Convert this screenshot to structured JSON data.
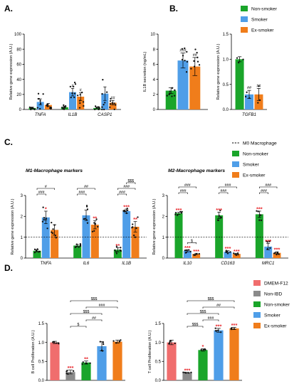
{
  "colors": {
    "green": "#1aa52a",
    "blue": "#4f9ee8",
    "orange": "#f07d1b",
    "dmem": "#f06d6d",
    "grey": "#8a8a8a",
    "star_red": "#e8262b",
    "axis": "#000000"
  },
  "panel_letters": {
    "A": "A.",
    "B": "B.",
    "C": "C.",
    "D": "D."
  },
  "legend_top": [
    "Non-smoker",
    "Smoker",
    "Ex-smoker"
  ],
  "legend_c": [
    "M0 Macrophage",
    "Non-smoker",
    "Smoker",
    "Ex-smoker"
  ],
  "legend_d": [
    "DMEM-F12",
    "Non-IBD",
    "Non-smoker",
    "Smoker",
    "Ex-smoker"
  ],
  "chart_data": [
    {
      "id": "A1",
      "type": "bar",
      "ylabel": "Relative gene expression (A.U.)",
      "ylim": [
        0,
        100
      ],
      "yticks": [
        0,
        20,
        40,
        60,
        80,
        100
      ],
      "categories": [
        "TNFA",
        "IL1B",
        "CASP1"
      ],
      "series": [
        {
          "name": "Non-smoker",
          "values": [
            2,
            3,
            2
          ],
          "errors": [
            1,
            1,
            1
          ]
        },
        {
          "name": "Smoker",
          "values": [
            10,
            23,
            21
          ],
          "errors": [
            4,
            5,
            9
          ]
        },
        {
          "name": "Ex-smoker",
          "values": [
            6,
            17,
            9
          ],
          "errors": [
            2,
            5,
            3
          ]
        }
      ],
      "annotations": [
        {
          "cat": 1,
          "series": 1,
          "text": "#"
        },
        {
          "cat": 1,
          "series": 2,
          "text": "#"
        },
        {
          "cat": 2,
          "series": 2,
          "text": "##"
        }
      ]
    },
    {
      "id": "A2",
      "type": "bar",
      "ylabel": "IL1B secretion (ng/mL)",
      "ylim": [
        0,
        10
      ],
      "yticks": [
        0,
        2,
        4,
        6,
        8,
        10
      ],
      "categories": [
        ""
      ],
      "series": [
        {
          "name": "Non-smoker",
          "values": [
            2.5
          ],
          "errors": [
            0.4
          ]
        },
        {
          "name": "Smoker",
          "values": [
            6.5
          ],
          "errors": [
            1.0
          ]
        },
        {
          "name": "Ex-smoker",
          "values": [
            5.7
          ],
          "errors": [
            1.2
          ]
        }
      ],
      "annotations": [
        {
          "cat": 0,
          "series": 1,
          "text": "###"
        },
        {
          "cat": 0,
          "series": 2,
          "text": "##"
        }
      ]
    },
    {
      "id": "B",
      "type": "bar",
      "ylabel": "Relative gene expression (A.U.)",
      "ylim": [
        0,
        1.5
      ],
      "yticks": [
        0,
        0.5,
        1.0,
        1.5
      ],
      "categories": [
        "TGFB1"
      ],
      "series": [
        {
          "name": "Non-smoker",
          "values": [
            1.0
          ],
          "errors": [
            0.05
          ]
        },
        {
          "name": "Smoker",
          "values": [
            0.3
          ],
          "errors": [
            0.08
          ]
        },
        {
          "name": "Ex-smoker",
          "values": [
            0.3
          ],
          "errors": [
            0.12
          ]
        }
      ],
      "annotations": [
        {
          "cat": 0,
          "series": 1,
          "text": "##"
        },
        {
          "cat": 0,
          "series": 2,
          "text": "##"
        }
      ]
    },
    {
      "id": "C1",
      "type": "bar",
      "title": "M1-Macrophage markers",
      "ylabel": "Relative gene expression (A.U.)",
      "ylim": [
        0,
        3
      ],
      "yticks": [
        0,
        1,
        2,
        3
      ],
      "reference_line": 1,
      "categories": [
        "TNFA",
        "IL6",
        "IL1B"
      ],
      "series": [
        {
          "name": "Non-smoker",
          "values": [
            0.35,
            0.6,
            0.4
          ],
          "errors": [
            0.05,
            0.05,
            0.1
          ]
        },
        {
          "name": "Smoker",
          "values": [
            1.95,
            2.05,
            2.25
          ],
          "errors": [
            0.3,
            0.25,
            0.1
          ]
        },
        {
          "name": "Ex-smoker",
          "values": [
            1.35,
            1.6,
            1.5
          ],
          "errors": [
            0.25,
            0.2,
            0.25
          ]
        }
      ],
      "stars": [
        {
          "cat": 0,
          "series": 1,
          "text": "*"
        },
        {
          "cat": 1,
          "series": 2,
          "text": "**"
        },
        {
          "cat": 2,
          "series": 0,
          "text": "**"
        },
        {
          "cat": 2,
          "series": 1,
          "text": "***"
        },
        {
          "cat": 2,
          "series": 2,
          "text": "**"
        }
      ],
      "brackets": [
        {
          "cat": 0,
          "from": 0,
          "to": 1,
          "level": 0,
          "text": "###"
        },
        {
          "cat": 0,
          "from": 0,
          "to": 2,
          "level": 1,
          "text": "#"
        },
        {
          "cat": 1,
          "from": 0,
          "to": 1,
          "level": 0,
          "text": "###"
        },
        {
          "cat": 1,
          "from": 0,
          "to": 2,
          "level": 1,
          "text": "##"
        },
        {
          "cat": 2,
          "from": 0,
          "to": 1,
          "level": 0,
          "text": "###"
        },
        {
          "cat": 2,
          "from": 0,
          "to": 2,
          "level": 1,
          "text": "###"
        },
        {
          "cat": 2,
          "from": 1,
          "to": 2,
          "level": 2,
          "text": "$$$"
        }
      ]
    },
    {
      "id": "C2",
      "type": "bar",
      "title": "M2-Macrophage markers",
      "ylabel": "Relative gene expression (A.U.)",
      "ylim": [
        0,
        3
      ],
      "yticks": [
        0,
        1,
        2,
        3
      ],
      "reference_line": 1,
      "categories": [
        "IL10",
        "CD163",
        "MRC1"
      ],
      "series": [
        {
          "name": "Non-smoker",
          "values": [
            2.15,
            2.05,
            2.1
          ],
          "errors": [
            0.05,
            0.15,
            0.15
          ]
        },
        {
          "name": "Smoker",
          "values": [
            0.35,
            0.3,
            0.55
          ],
          "errors": [
            0.05,
            0.05,
            0.15
          ]
        },
        {
          "name": "Ex-smoker",
          "values": [
            0.2,
            0.2,
            0.25
          ],
          "errors": [
            0.03,
            0.03,
            0.05
          ]
        }
      ],
      "stars": [
        {
          "cat": 0,
          "series": 0,
          "text": "***"
        },
        {
          "cat": 0,
          "series": 1,
          "text": "***"
        },
        {
          "cat": 0,
          "series": 2,
          "text": "***"
        },
        {
          "cat": 1,
          "series": 0,
          "text": "***"
        },
        {
          "cat": 1,
          "series": 1,
          "text": "***"
        },
        {
          "cat": 1,
          "series": 2,
          "text": "***"
        },
        {
          "cat": 2,
          "series": 0,
          "text": "***"
        },
        {
          "cat": 2,
          "series": 1,
          "text": "***"
        },
        {
          "cat": 2,
          "series": 2,
          "text": "***"
        }
      ],
      "brackets": [
        {
          "cat": 0,
          "from": 1,
          "to": 2,
          "level": -1,
          "text": "$"
        },
        {
          "cat": 0,
          "from": 0,
          "to": 1,
          "level": 1,
          "text": "###"
        },
        {
          "cat": 0,
          "from": 0,
          "to": 2,
          "level": 2,
          "text": "###"
        },
        {
          "cat": 1,
          "from": 0,
          "to": 1,
          "level": 1,
          "text": "###"
        },
        {
          "cat": 1,
          "from": 0,
          "to": 2,
          "level": 2,
          "text": "###"
        },
        {
          "cat": 2,
          "from": 0,
          "to": 1,
          "level": 1,
          "text": "###"
        },
        {
          "cat": 2,
          "from": 0,
          "to": 2,
          "level": 2,
          "text": "###"
        }
      ]
    },
    {
      "id": "D1",
      "type": "bar",
      "ylabel": "B cell Proliferation (A.U.)",
      "ylim": [
        0,
        1.5
      ],
      "yticks": [
        0,
        0.5,
        1.0,
        1.5
      ],
      "categories": [
        "DMEM-F12",
        "Non-IBD",
        "Non-smoker",
        "Smoker",
        "Ex-smoker"
      ],
      "values": [
        1.0,
        0.22,
        0.47,
        0.9,
        1.02
      ],
      "errors": [
        0.03,
        0.05,
        0.04,
        0.12,
        0.04
      ],
      "stars": [
        {
          "bar": 1,
          "text": "***"
        },
        {
          "bar": 2,
          "text": "**"
        }
      ],
      "brackets": [
        {
          "from": 1,
          "to": 2,
          "level": 0,
          "text": "$"
        },
        {
          "from": 2,
          "to": 3,
          "level": 1,
          "text": "##"
        },
        {
          "from": 1,
          "to": 3,
          "level": 2,
          "text": "$$$"
        },
        {
          "from": 2,
          "to": 4,
          "level": 3,
          "text": "###"
        },
        {
          "from": 1,
          "to": 4,
          "level": 4,
          "text": "$$$"
        }
      ]
    },
    {
      "id": "D2",
      "type": "bar",
      "ylabel": "T cell Proliferation (A.U.)",
      "ylim": [
        0,
        1.5
      ],
      "yticks": [
        0,
        0.5,
        1.0,
        1.5
      ],
      "categories": [
        "DMEM-F12",
        "Non-IBD",
        "Non-smoker",
        "Smoker",
        "Ex-smoker"
      ],
      "values": [
        1.0,
        0.2,
        0.8,
        1.32,
        1.37
      ],
      "errors": [
        0.06,
        0.01,
        0.03,
        0.05,
        0.03
      ],
      "stars": [
        {
          "bar": 1,
          "text": "***"
        },
        {
          "bar": 2,
          "text": "*"
        },
        {
          "bar": 3,
          "text": "***"
        },
        {
          "bar": 4,
          "text": "***"
        }
      ],
      "brackets": [
        {
          "from": 1,
          "to": 2,
          "level": 0,
          "text": "$$$"
        },
        {
          "from": 2,
          "to": 3,
          "level": 1,
          "text": "###"
        },
        {
          "from": 1,
          "to": 3,
          "level": 2,
          "text": "$$$"
        },
        {
          "from": 2,
          "to": 4,
          "level": 3,
          "text": "##"
        },
        {
          "from": 1,
          "to": 4,
          "level": 4,
          "text": "$$$"
        }
      ]
    }
  ]
}
